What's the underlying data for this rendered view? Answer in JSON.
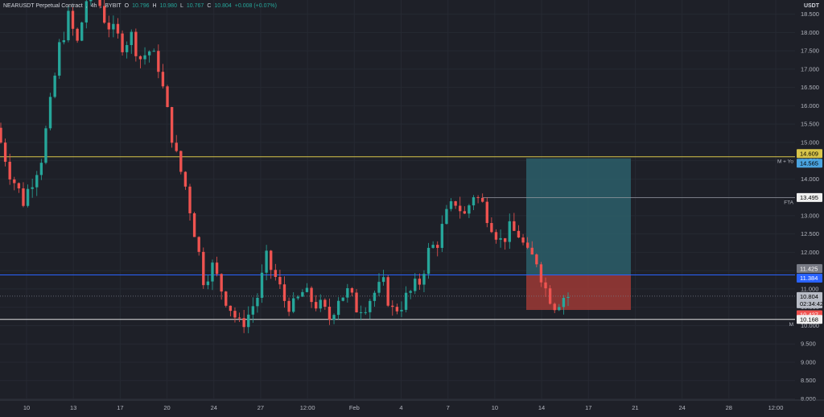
{
  "legend": {
    "symbol": "NEARUSDT Perpetual Contract",
    "interval": "4h",
    "exchange": "BYBIT",
    "open_label": "O",
    "open": "10.796",
    "high_label": "H",
    "high": "10.980",
    "low_label": "L",
    "low": "10.767",
    "close_label": "C",
    "close": "10.804",
    "change": "+0.008 (+0.07%)"
  },
  "currency": "USDT",
  "colors": {
    "background": "#1e2028",
    "up": "#26a69a",
    "down": "#ef5350",
    "level_yellow": "#d8c54a",
    "level_blue": "#2962ff",
    "level_white": "#e0e0e0",
    "profit_zone": "#2b5f6a",
    "loss_zone": "#9c3a35"
  },
  "price_tags": {
    "top_yellow": "14.609",
    "top_blue": "14.565",
    "fta": "13.495",
    "upper_grey": "11.425",
    "upper_blue": "11.384",
    "last_price": "10.804",
    "countdown": "02:34:42",
    "stop_red": "10.427",
    "bottom_white": "10.168"
  },
  "line_labels": {
    "m_yo": "M + Yo",
    "fta": "FTA",
    "m": "M"
  },
  "chart_data": {
    "type": "candlestick",
    "title": "",
    "xlabel": "",
    "ylabel": "",
    "ylim": [
      7.9,
      18.8
    ],
    "y_ticks": [
      "18.500",
      "18.000",
      "17.500",
      "17.000",
      "16.500",
      "16.000",
      "15.500",
      "15.000",
      "14.500",
      "14.000",
      "13.500",
      "13.000",
      "12.500",
      "12.000",
      "11.500",
      "11.000",
      "10.500",
      "10.000",
      "9.500",
      "9.000",
      "8.500",
      "8.000"
    ],
    "x_ticks": [
      "10",
      "13",
      "17",
      "20",
      "24",
      "27",
      "12:00",
      "Feb",
      "4",
      "7",
      "10",
      "14",
      "17",
      "21",
      "24",
      "28",
      "12:00"
    ],
    "trend_points": [
      [
        0,
        15.4
      ],
      [
        3,
        14.2
      ],
      [
        6,
        13.4
      ],
      [
        8,
        14.0
      ],
      [
        10,
        14.6
      ],
      [
        12,
        16.0
      ],
      [
        14,
        17.6
      ],
      [
        16,
        18.4
      ],
      [
        18,
        17.7
      ],
      [
        20,
        18.9
      ],
      [
        22,
        19.1
      ],
      [
        24,
        18.4
      ],
      [
        26,
        18.0
      ],
      [
        28,
        17.7
      ],
      [
        30,
        17.9
      ],
      [
        32,
        17.3
      ],
      [
        34,
        17.5
      ],
      [
        36,
        17.1
      ],
      [
        38,
        15.8
      ],
      [
        40,
        14.6
      ],
      [
        42,
        13.8
      ],
      [
        44,
        12.6
      ],
      [
        46,
        11.3
      ],
      [
        48,
        11.6
      ],
      [
        50,
        11.0
      ],
      [
        52,
        10.5
      ],
      [
        54,
        10.0
      ],
      [
        56,
        10.3
      ],
      [
        58,
        10.8
      ],
      [
        60,
        11.8
      ],
      [
        62,
        11.3
      ],
      [
        64,
        10.7
      ],
      [
        66,
        10.5
      ],
      [
        68,
        10.9
      ],
      [
        70,
        10.7
      ],
      [
        72,
        10.5
      ],
      [
        74,
        10.2
      ],
      [
        76,
        10.8
      ],
      [
        78,
        10.9
      ],
      [
        80,
        10.5
      ],
      [
        82,
        10.6
      ],
      [
        84,
        10.9
      ],
      [
        86,
        11.1
      ],
      [
        88,
        10.4
      ],
      [
        90,
        10.6
      ],
      [
        92,
        10.9
      ],
      [
        94,
        11.2
      ],
      [
        96,
        12.0
      ],
      [
        98,
        12.3
      ],
      [
        100,
        13.0
      ],
      [
        102,
        13.4
      ],
      [
        104,
        13.0
      ],
      [
        106,
        13.6
      ],
      [
        108,
        13.3
      ],
      [
        110,
        12.8
      ],
      [
        112,
        12.3
      ],
      [
        114,
        12.6
      ],
      [
        116,
        12.5
      ],
      [
        118,
        11.9
      ],
      [
        120,
        11.8
      ],
      [
        122,
        11.0
      ],
      [
        124,
        10.6
      ],
      [
        126,
        10.8
      ]
    ],
    "levels": [
      {
        "label": "M + Yo",
        "value": 14.609
      },
      {
        "label": "FTA",
        "value": 13.495
      },
      {
        "label": "",
        "value": 11.384
      },
      {
        "label": "M",
        "value": 10.168
      }
    ],
    "position": {
      "entry": 11.384,
      "target": 14.565,
      "stop": 10.427
    }
  }
}
